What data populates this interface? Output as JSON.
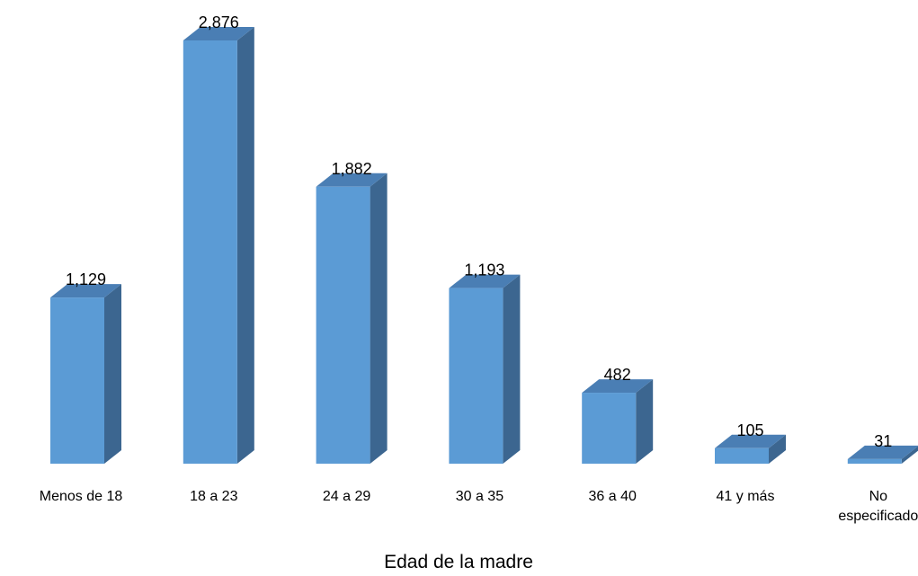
{
  "chart_data": {
    "type": "bar",
    "title": "",
    "xlabel": "Edad de la madre",
    "ylabel": "",
    "categories": [
      "Menos de 18",
      "18 a 23",
      "24 a 29",
      "30 a 35",
      "36 a 40",
      "41 y más",
      "No especificado"
    ],
    "category_lines": [
      [
        "Menos de 18"
      ],
      [
        "18 a 23"
      ],
      [
        "24 a 29"
      ],
      [
        "30 a 35"
      ],
      [
        "36 a 40"
      ],
      [
        "41 y más"
      ],
      [
        "No",
        "especificado"
      ]
    ],
    "values": [
      1129,
      2876,
      1882,
      1193,
      482,
      105,
      31
    ],
    "value_labels": [
      "1,129",
      "2,876",
      "1,882",
      "1,193",
      "482",
      "105",
      "31"
    ],
    "ylim": [
      0,
      2900
    ],
    "grid": false,
    "style": "3d-column",
    "colors": {
      "front": "#5B9BD5",
      "top": "#4A7EB4",
      "side": "#3C6690"
    }
  }
}
